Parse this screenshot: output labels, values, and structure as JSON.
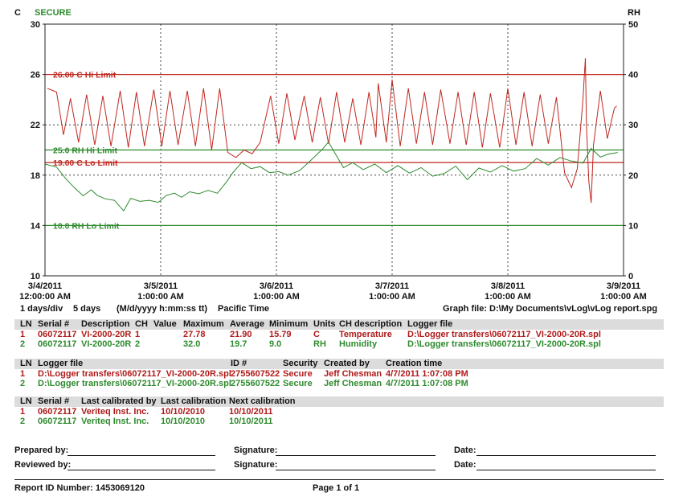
{
  "colors": {
    "temp": "#c0271f",
    "rh": "#2e8b2e",
    "secure": "#2e8b2e",
    "grid": "#444444"
  },
  "chart_data": {
    "type": "line",
    "title": "SECURE",
    "y_left": {
      "label": "C",
      "ticks": [
        "30",
        "26",
        "22",
        "18",
        "14",
        "10"
      ],
      "range": [
        10,
        30
      ]
    },
    "y_right": {
      "label": "RH",
      "ticks": [
        "50",
        "40",
        "30",
        "20",
        "10",
        "0"
      ],
      "range": [
        0,
        50
      ]
    },
    "x_ticks": [
      {
        "date": "3/4/2011",
        "time": "12:00:00 AM"
      },
      {
        "date": "3/5/2011",
        "time": "1:00:00 AM"
      },
      {
        "date": "3/6/2011",
        "time": "1:00:00 AM"
      },
      {
        "date": "3/7/2011",
        "time": "1:00:00 AM"
      },
      {
        "date": "3/8/2011",
        "time": "1:00:00 AM"
      },
      {
        "date": "3/9/2011",
        "time": "1:00:00 AM"
      }
    ],
    "x_range_days": [
      0,
      5
    ],
    "limits": [
      {
        "label": "26.00 C Hi Limit",
        "value": 26,
        "axis": "left",
        "series": "temp"
      },
      {
        "label": "19.00 C Lo Limit",
        "value": 19,
        "axis": "left",
        "series": "temp"
      },
      {
        "label": "25.0 RH Hi Limit",
        "value": 25,
        "axis": "right",
        "series": "rh"
      },
      {
        "label": "10.0 RH Lo Limit",
        "value": 10,
        "axis": "right",
        "series": "rh"
      }
    ],
    "grid": "dotted-vertical-and-midlines",
    "series": [
      {
        "key": "temp",
        "axis": "left",
        "points": [
          [
            0.02,
            24.9
          ],
          [
            0.1,
            24.6
          ],
          [
            0.16,
            21.2
          ],
          [
            0.22,
            24.1
          ],
          [
            0.29,
            20.6
          ],
          [
            0.36,
            24.4
          ],
          [
            0.43,
            20.4
          ],
          [
            0.5,
            24.3
          ],
          [
            0.57,
            20.3
          ],
          [
            0.65,
            24.7
          ],
          [
            0.72,
            20.2
          ],
          [
            0.79,
            24.6
          ],
          [
            0.86,
            20.3
          ],
          [
            0.94,
            24.8
          ],
          [
            1.01,
            20.3
          ],
          [
            1.08,
            24.7
          ],
          [
            1.15,
            20.4
          ],
          [
            1.23,
            24.7
          ],
          [
            1.3,
            20.3
          ],
          [
            1.37,
            24.9
          ],
          [
            1.44,
            20.0
          ],
          [
            1.51,
            24.9
          ],
          [
            1.58,
            19.8
          ],
          [
            1.65,
            19.4
          ],
          [
            1.72,
            20.0
          ],
          [
            1.79,
            19.7
          ],
          [
            1.86,
            20.6
          ],
          [
            1.95,
            24.3
          ],
          [
            2.02,
            20.5
          ],
          [
            2.09,
            24.5
          ],
          [
            2.16,
            20.8
          ],
          [
            2.24,
            24.3
          ],
          [
            2.31,
            20.6
          ],
          [
            2.38,
            24.2
          ],
          [
            2.45,
            20.5
          ],
          [
            2.52,
            24.6
          ],
          [
            2.59,
            20.6
          ],
          [
            2.66,
            24.1
          ],
          [
            2.73,
            20.4
          ],
          [
            2.8,
            24.6
          ],
          [
            2.86,
            21.0
          ],
          [
            2.88,
            25.3
          ],
          [
            2.95,
            20.6
          ],
          [
            3.0,
            25.6
          ],
          [
            3.07,
            20.3
          ],
          [
            3.14,
            24.9
          ],
          [
            3.21,
            20.5
          ],
          [
            3.28,
            24.6
          ],
          [
            3.35,
            20.4
          ],
          [
            3.42,
            24.8
          ],
          [
            3.5,
            20.5
          ],
          [
            3.57,
            24.6
          ],
          [
            3.64,
            20.4
          ],
          [
            3.71,
            24.6
          ],
          [
            3.78,
            20.2
          ],
          [
            3.85,
            24.5
          ],
          [
            3.93,
            20.2
          ],
          [
            4.0,
            24.9
          ],
          [
            4.07,
            20.4
          ],
          [
            4.14,
            24.6
          ],
          [
            4.21,
            20.3
          ],
          [
            4.28,
            24.4
          ],
          [
            4.35,
            20.5
          ],
          [
            4.42,
            24.2
          ],
          [
            4.49,
            18.2
          ],
          [
            4.55,
            17.0
          ],
          [
            4.6,
            18.5
          ],
          [
            4.65,
            24.1
          ],
          [
            4.66,
            25.7
          ],
          [
            4.67,
            27.3
          ],
          [
            4.68,
            21.9
          ],
          [
            4.7,
            17.5
          ],
          [
            4.72,
            15.8
          ],
          [
            4.74,
            20.4
          ],
          [
            4.8,
            24.7
          ],
          [
            4.86,
            20.9
          ],
          [
            4.92,
            23.3
          ],
          [
            4.94,
            23.5
          ]
        ]
      },
      {
        "key": "rh",
        "axis": "right",
        "points": [
          [
            0.0,
            22.2
          ],
          [
            0.1,
            21.6
          ],
          [
            0.18,
            19.3
          ],
          [
            0.25,
            17.6
          ],
          [
            0.33,
            15.9
          ],
          [
            0.4,
            17.1
          ],
          [
            0.45,
            16.0
          ],
          [
            0.52,
            15.3
          ],
          [
            0.6,
            15.0
          ],
          [
            0.68,
            12.9
          ],
          [
            0.74,
            15.4
          ],
          [
            0.82,
            14.8
          ],
          [
            0.9,
            15.0
          ],
          [
            0.98,
            14.6
          ],
          [
            1.05,
            16.0
          ],
          [
            1.12,
            16.4
          ],
          [
            1.18,
            15.6
          ],
          [
            1.25,
            16.7
          ],
          [
            1.33,
            16.3
          ],
          [
            1.41,
            17.0
          ],
          [
            1.49,
            16.4
          ],
          [
            1.57,
            18.7
          ],
          [
            1.62,
            20.4
          ],
          [
            1.7,
            22.5
          ],
          [
            1.78,
            21.3
          ],
          [
            1.86,
            21.7
          ],
          [
            1.94,
            20.5
          ],
          [
            2.02,
            20.7
          ],
          [
            2.1,
            20.0
          ],
          [
            2.2,
            20.9
          ],
          [
            2.3,
            23.0
          ],
          [
            2.4,
            25.2
          ],
          [
            2.45,
            26.6
          ],
          [
            2.5,
            24.6
          ],
          [
            2.58,
            21.5
          ],
          [
            2.66,
            22.5
          ],
          [
            2.75,
            21.1
          ],
          [
            2.85,
            22.2
          ],
          [
            2.95,
            20.5
          ],
          [
            3.05,
            21.9
          ],
          [
            3.15,
            20.4
          ],
          [
            3.25,
            21.5
          ],
          [
            3.35,
            19.8
          ],
          [
            3.45,
            20.3
          ],
          [
            3.55,
            21.8
          ],
          [
            3.65,
            19.1
          ],
          [
            3.75,
            21.4
          ],
          [
            3.85,
            20.6
          ],
          [
            3.95,
            21.9
          ],
          [
            4.05,
            20.8
          ],
          [
            4.15,
            21.3
          ],
          [
            4.25,
            23.3
          ],
          [
            4.35,
            22.0
          ],
          [
            4.45,
            23.5
          ],
          [
            4.55,
            22.8
          ],
          [
            4.65,
            22.4
          ],
          [
            4.72,
            25.3
          ],
          [
            4.8,
            23.6
          ],
          [
            4.87,
            24.2
          ],
          [
            4.95,
            24.5
          ]
        ]
      }
    ]
  },
  "footer_meta": {
    "scale": "1 days/div",
    "span": "5 days",
    "format": "(M/d/yyyy h:mm:ss tt)",
    "timezone": "Pacific Time",
    "graph_file": "Graph file: D:\\My Documents\\vLog\\vLog report.spg"
  },
  "table1": {
    "headers": [
      "LN",
      "Serial #",
      "Description",
      "CH",
      "Value",
      "Maximum",
      "Average",
      "Minimum",
      "Units",
      "CH description",
      "Logger file"
    ],
    "rows": [
      [
        "1",
        "06072117",
        "VI-2000-20R",
        "1",
        "",
        "27.78",
        "21.90",
        "15.79",
        "C",
        "Temperature",
        "D:\\Logger transfers\\06072117_VI-2000-20R.spl"
      ],
      [
        "2",
        "06072117",
        "VI-2000-20R",
        "2",
        "",
        "32.0",
        "19.7",
        "9.0",
        "RH",
        "Humidity",
        "D:\\Logger transfers\\06072117_VI-2000-20R.spl"
      ]
    ]
  },
  "table2": {
    "headers": [
      "LN",
      "Logger file",
      "ID #",
      "Security",
      "Created by",
      "Creation time"
    ],
    "rows": [
      [
        "1",
        "D:\\Logger transfers\\06072117_VI-2000-20R.spl",
        "2755607522",
        "Secure",
        "Jeff Chesman",
        "4/7/2011 1:07:08 PM"
      ],
      [
        "2",
        "D:\\Logger transfers\\06072117_VI-2000-20R.spl",
        "2755607522",
        "Secure",
        "Jeff Chesman",
        "4/7/2011 1:07:08 PM"
      ]
    ]
  },
  "table3": {
    "headers": [
      "LN",
      "Serial #",
      "Last calibrated by",
      "Last calibration",
      "Next calibration"
    ],
    "rows": [
      [
        "1",
        "06072117",
        "Veriteq Inst. Inc.",
        "10/10/2010",
        "10/10/2011"
      ],
      [
        "2",
        "06072117",
        "Veriteq Inst. Inc.",
        "10/10/2010",
        "10/10/2011"
      ]
    ]
  },
  "signatures": {
    "prepared_by": "Prepared by:",
    "reviewed_by": "Reviewed by:",
    "signature": "Signature:",
    "date": "Date:"
  },
  "report": {
    "id": "Report ID Number: 1453069120",
    "page": "Page 1 of 1"
  }
}
